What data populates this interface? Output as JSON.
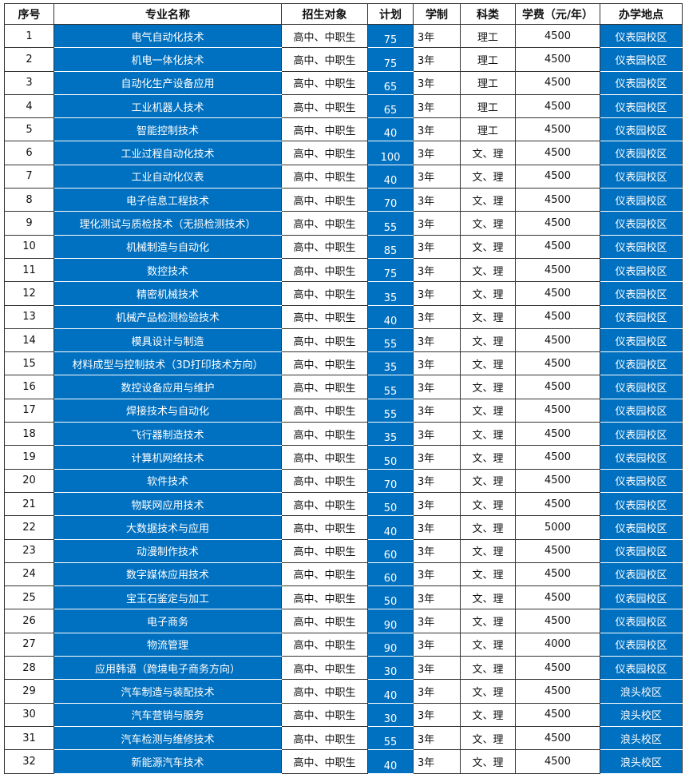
{
  "headers": [
    "序号",
    "专业名称",
    "招生对象",
    "计划",
    "学制",
    "科类",
    "学费（元/年）",
    "办学地点"
  ],
  "colors": {
    "highlight": "#0070c0"
  },
  "rows": [
    [
      "1",
      "电气自动化技术",
      "高中、中职生",
      "75",
      "3年",
      "理工",
      "4500",
      "仪表园校区"
    ],
    [
      "2",
      "机电一体化技术",
      "高中、中职生",
      "75",
      "3年",
      "理工",
      "4500",
      "仪表园校区"
    ],
    [
      "3",
      "自动化生产设备应用",
      "高中、中职生",
      "65",
      "3年",
      "理工",
      "4500",
      "仪表园校区"
    ],
    [
      "4",
      "工业机器人技术",
      "高中、中职生",
      "65",
      "3年",
      "理工",
      "4500",
      "仪表园校区"
    ],
    [
      "5",
      "智能控制技术",
      "高中、中职生",
      "40",
      "3年",
      "理工",
      "4500",
      "仪表园校区"
    ],
    [
      "6",
      "工业过程自动化技术",
      "高中、中职生",
      "100",
      "3年",
      "文、理",
      "4500",
      "仪表园校区"
    ],
    [
      "7",
      "工业自动化仪表",
      "高中、中职生",
      "40",
      "3年",
      "文、理",
      "4500",
      "仪表园校区"
    ],
    [
      "8",
      "电子信息工程技术",
      "高中、中职生",
      "70",
      "3年",
      "文、理",
      "4500",
      "仪表园校区"
    ],
    [
      "9",
      "理化测试与质检技术（无损检测技术）",
      "高中、中职生",
      "55",
      "3年",
      "文、理",
      "4500",
      "仪表园校区"
    ],
    [
      "10",
      "机械制造与自动化",
      "高中、中职生",
      "85",
      "3年",
      "文、理",
      "4500",
      "仪表园校区"
    ],
    [
      "11",
      "数控技术",
      "高中、中职生",
      "75",
      "3年",
      "文、理",
      "4500",
      "仪表园校区"
    ],
    [
      "12",
      "精密机械技术",
      "高中、中职生",
      "35",
      "3年",
      "文、理",
      "4500",
      "仪表园校区"
    ],
    [
      "13",
      "机械产品检测检验技术",
      "高中、中职生",
      "40",
      "3年",
      "文、理",
      "4500",
      "仪表园校区"
    ],
    [
      "14",
      "模具设计与制造",
      "高中、中职生",
      "55",
      "3年",
      "文、理",
      "4500",
      "仪表园校区"
    ],
    [
      "15",
      "材料成型与控制技术（3D打印技术方向）",
      "高中、中职生",
      "35",
      "3年",
      "文、理",
      "4500",
      "仪表园校区"
    ],
    [
      "16",
      "数控设备应用与维护",
      "高中、中职生",
      "55",
      "3年",
      "文、理",
      "4500",
      "仪表园校区"
    ],
    [
      "17",
      "焊接技术与自动化",
      "高中、中职生",
      "55",
      "3年",
      "文、理",
      "4500",
      "仪表园校区"
    ],
    [
      "18",
      "飞行器制造技术",
      "高中、中职生",
      "35",
      "3年",
      "文、理",
      "4500",
      "仪表园校区"
    ],
    [
      "19",
      "计算机网络技术",
      "高中、中职生",
      "50",
      "3年",
      "文、理",
      "4500",
      "仪表园校区"
    ],
    [
      "20",
      "软件技术",
      "高中、中职生",
      "70",
      "3年",
      "文、理",
      "4500",
      "仪表园校区"
    ],
    [
      "21",
      "物联网应用技术",
      "高中、中职生",
      "50",
      "3年",
      "文、理",
      "4500",
      "仪表园校区"
    ],
    [
      "22",
      "大数据技术与应用",
      "高中、中职生",
      "40",
      "3年",
      "文、理",
      "5000",
      "仪表园校区"
    ],
    [
      "23",
      "动漫制作技术",
      "高中、中职生",
      "60",
      "3年",
      "文、理",
      "4500",
      "仪表园校区"
    ],
    [
      "24",
      "数字媒体应用技术",
      "高中、中职生",
      "60",
      "3年",
      "文、理",
      "4500",
      "仪表园校区"
    ],
    [
      "25",
      "宝玉石鉴定与加工",
      "高中、中职生",
      "50",
      "3年",
      "文、理",
      "4500",
      "仪表园校区"
    ],
    [
      "26",
      "电子商务",
      "高中、中职生",
      "90",
      "3年",
      "文、理",
      "4500",
      "仪表园校区"
    ],
    [
      "27",
      "物流管理",
      "高中、中职生",
      "90",
      "3年",
      "文、理",
      "4000",
      "仪表园校区"
    ],
    [
      "28",
      "应用韩语（跨境电子商务方向）",
      "高中、中职生",
      "30",
      "3年",
      "文、理",
      "4500",
      "仪表园校区"
    ],
    [
      "29",
      "汽车制造与装配技术",
      "高中、中职生",
      "40",
      "3年",
      "文、理",
      "4500",
      "浪头校区"
    ],
    [
      "30",
      "汽车营销与服务",
      "高中、中职生",
      "30",
      "3年",
      "文、理",
      "4500",
      "浪头校区"
    ],
    [
      "31",
      "汽车检测与维修技术",
      "高中、中职生",
      "55",
      "3年",
      "文、理",
      "4500",
      "浪头校区"
    ],
    [
      "32",
      "新能源汽车技术",
      "高中、中职生",
      "40",
      "3年",
      "文、理",
      "4500",
      "浪头校区"
    ]
  ]
}
